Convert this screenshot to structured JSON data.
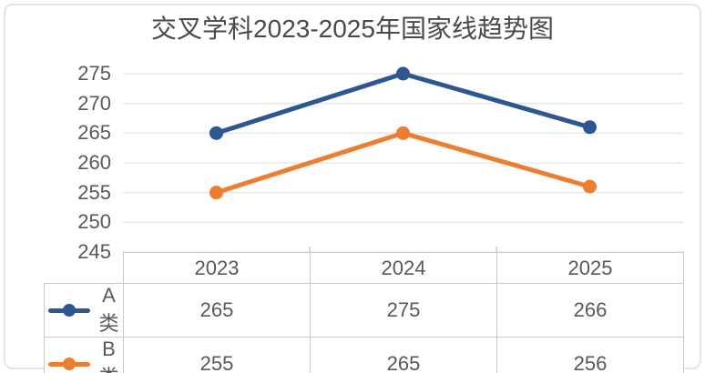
{
  "title": "交叉学科2023-2025年国家线趋势图",
  "chart_data": {
    "type": "line",
    "title": "交叉学科2023-2025年国家线趋势图",
    "categories": [
      "2023",
      "2024",
      "2025"
    ],
    "series": [
      {
        "name": "A类",
        "values": [
          265,
          275,
          266
        ],
        "color": "#2E5693"
      },
      {
        "name": "B类",
        "values": [
          255,
          265,
          256
        ],
        "color": "#ED7D31"
      }
    ],
    "ylim": [
      245,
      275
    ],
    "ytick_step": 5,
    "yticks": [
      245,
      250,
      255,
      260,
      265,
      270,
      275
    ],
    "grid": true,
    "legend_position": "data-table-left",
    "xlabel": "",
    "ylabel": ""
  },
  "colors": {
    "grid": "#E8E8E8",
    "table_border": "#CACACA",
    "axis_text": "#595959",
    "title_text": "#4A4A4A",
    "background": "#FFFFFF"
  }
}
